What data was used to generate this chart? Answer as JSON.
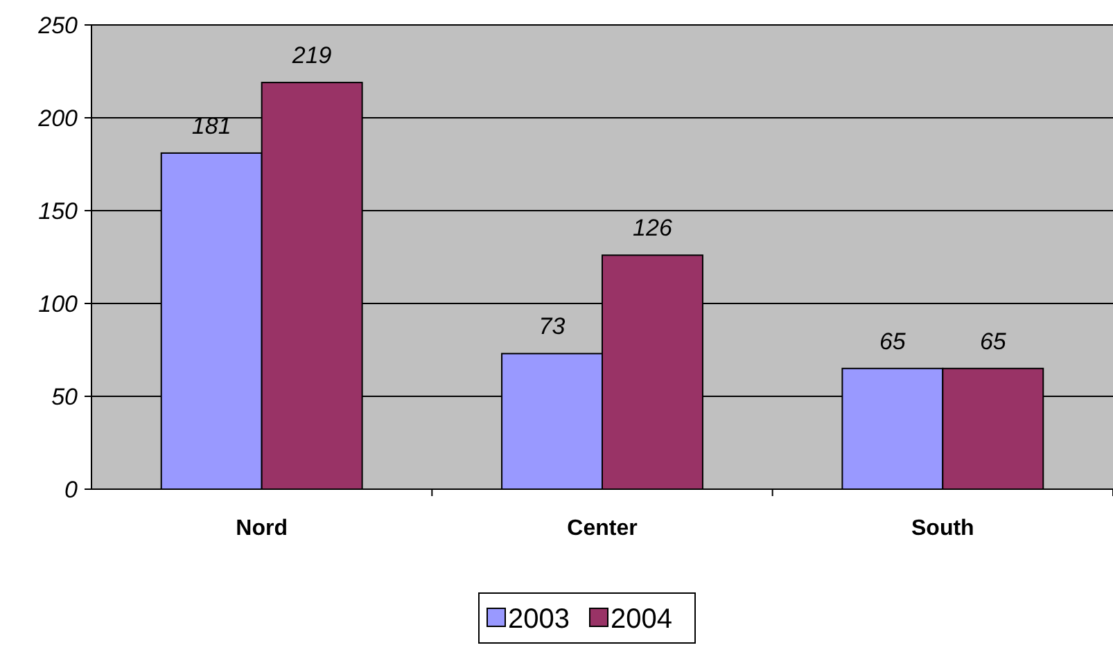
{
  "chart_data": {
    "type": "bar",
    "categories": [
      "Nord",
      "Center",
      "South"
    ],
    "series": [
      {
        "name": "2003",
        "color": "#9999ff",
        "values": [
          181,
          73,
          65
        ]
      },
      {
        "name": "2004",
        "color": "#993366",
        "values": [
          219,
          126,
          65
        ]
      }
    ],
    "ylim": [
      0,
      250
    ],
    "yticks": [
      0,
      50,
      100,
      150,
      200,
      250
    ],
    "grid": "y",
    "legend": "bottom",
    "data_labels": true
  }
}
